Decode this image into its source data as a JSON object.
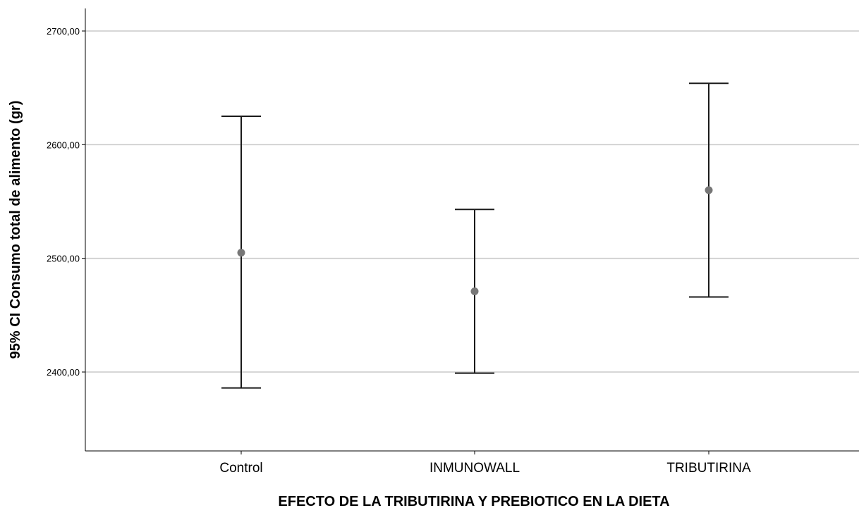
{
  "chart_data": {
    "type": "errorbar",
    "xlabel": "EFECTO DE LA TRIBUTIRINA  Y PREBIOTICO EN LA DIETA",
    "ylabel": "95% CI Consumo total de alimento (gr)",
    "categories": [
      "Control",
      "INMUNOWALL",
      "TRIBUTIRINA"
    ],
    "means": [
      2505,
      2471,
      2560
    ],
    "ci_lower": [
      2386,
      2399,
      2466
    ],
    "ci_upper": [
      2625,
      2543,
      2654
    ],
    "yticks": [
      2400,
      2500,
      2600,
      2700
    ],
    "ytick_labels": [
      "2400,00",
      "2500,00",
      "2600,00",
      "2700,00"
    ],
    "ylim": [
      2330,
      2720
    ],
    "grid": "horizontal",
    "colors": {
      "bar": "#1a1a1a",
      "point": "#777777",
      "grid": "#c8c8c8",
      "axis": "#000000"
    }
  }
}
